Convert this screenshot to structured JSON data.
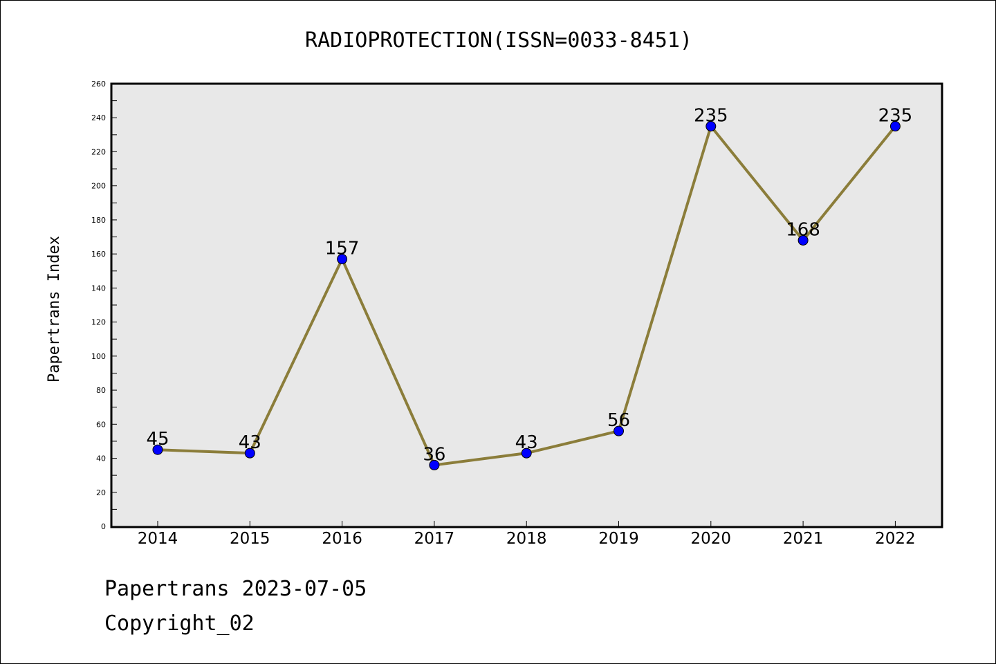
{
  "chart_data": {
    "type": "line",
    "title": "RADIOPROTECTION(ISSN=0033-8451)",
    "xlabel": "",
    "ylabel": "Papertrans Index",
    "categories": [
      "2014",
      "2015",
      "2016",
      "2017",
      "2018",
      "2019",
      "2020",
      "2021",
      "2022"
    ],
    "series": [
      {
        "values": [
          45,
          43,
          157,
          36,
          43,
          56,
          235,
          168,
          235
        ]
      }
    ],
    "data_labels": [
      "45",
      "43",
      "157",
      "36",
      "43",
      "56",
      "235",
      "168",
      "235"
    ],
    "ylim": [
      0,
      260
    ],
    "yticks": [
      0,
      20,
      40,
      60,
      80,
      100,
      120,
      140,
      160,
      180,
      200,
      220,
      240,
      260
    ],
    "ytick_labels": [
      "0",
      "20",
      "40",
      "60",
      "80",
      "100",
      "120",
      "140",
      "160",
      "180",
      "200",
      "220",
      "240",
      "260"
    ],
    "grid": false,
    "colors": {
      "line": "#8b7d3a",
      "marker": "#0000ff",
      "plot_background": "#e8e8e8"
    }
  },
  "footer": {
    "line1": "Papertrans 2023-07-05",
    "line2": "Copyright_02"
  }
}
